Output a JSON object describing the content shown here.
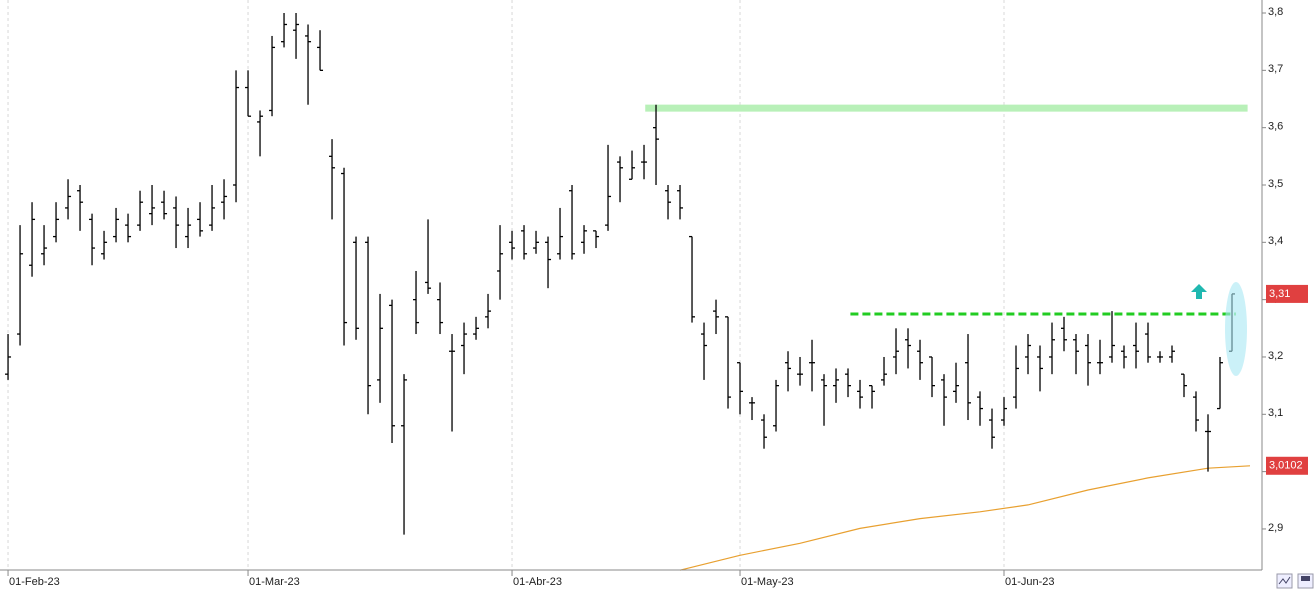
{
  "chart_data": {
    "type": "ohlc",
    "color": "#000000",
    "grid": true,
    "xlim": [
      -0.67,
      104.5
    ],
    "ylim": [
      2.8284,
      3.8227
    ],
    "yticks": [
      {
        "value": 2.9,
        "label": "2,9"
      },
      {
        "value": 3.0,
        "label": "3"
      },
      {
        "value": 3.1,
        "label": "3,1"
      },
      {
        "value": 3.2,
        "label": "3,2"
      },
      {
        "value": 3.3,
        "label": "3,3"
      },
      {
        "value": 3.4,
        "label": "3,4"
      },
      {
        "value": 3.5,
        "label": "3,5"
      },
      {
        "value": 3.6,
        "label": "3,6"
      },
      {
        "value": 3.7,
        "label": "3,7"
      },
      {
        "value": 3.8,
        "label": "3,8"
      }
    ],
    "xticks": [
      {
        "value": 0,
        "label": "01-Feb-23"
      },
      {
        "value": 20,
        "label": "01-Mar-23"
      },
      {
        "value": 42,
        "label": "01-Abr-23"
      },
      {
        "value": 61,
        "label": "01-May-23"
      },
      {
        "value": 83,
        "label": "01-Jun-23"
      }
    ],
    "ohlc": [
      [
        3.17,
        3.24,
        3.16,
        3.2
      ],
      [
        3.24,
        3.43,
        3.22,
        3.38
      ],
      [
        3.36,
        3.47,
        3.34,
        3.44
      ],
      [
        3.38,
        3.43,
        3.36,
        3.39
      ],
      [
        3.41,
        3.47,
        3.4,
        3.44
      ],
      [
        3.46,
        3.51,
        3.44,
        3.48
      ],
      [
        3.49,
        3.5,
        3.42,
        3.47
      ],
      [
        3.44,
        3.45,
        3.36,
        3.39
      ],
      [
        3.38,
        3.42,
        3.37,
        3.4
      ],
      [
        3.41,
        3.46,
        3.4,
        3.44
      ],
      [
        3.43,
        3.45,
        3.4,
        3.41
      ],
      [
        3.43,
        3.49,
        3.42,
        3.47
      ],
      [
        3.45,
        3.5,
        3.43,
        3.46
      ],
      [
        3.47,
        3.49,
        3.44,
        3.45
      ],
      [
        3.46,
        3.48,
        3.39,
        3.43
      ],
      [
        3.41,
        3.46,
        3.39,
        3.43
      ],
      [
        3.44,
        3.47,
        3.41,
        3.42
      ],
      [
        3.43,
        3.5,
        3.42,
        3.46
      ],
      [
        3.47,
        3.51,
        3.44,
        3.48
      ],
      [
        3.5,
        3.7,
        3.47,
        3.67
      ],
      [
        3.67,
        3.7,
        3.62,
        3.62
      ],
      [
        3.61,
        3.63,
        3.55,
        3.62
      ],
      [
        3.63,
        3.76,
        3.62,
        3.74
      ],
      [
        3.75,
        3.8,
        3.74,
        3.78
      ],
      [
        3.77,
        3.8,
        3.72,
        3.78
      ],
      [
        3.76,
        3.78,
        3.64,
        3.75
      ],
      [
        3.74,
        3.77,
        3.7,
        3.7
      ],
      [
        3.55,
        3.58,
        3.44,
        3.53
      ],
      [
        3.52,
        3.53,
        3.22,
        3.26
      ],
      [
        3.4,
        3.41,
        3.23,
        3.25
      ],
      [
        3.4,
        3.41,
        3.1,
        3.15
      ],
      [
        3.16,
        3.31,
        3.12,
        3.25
      ],
      [
        3.29,
        3.3,
        3.05,
        3.08
      ],
      [
        3.08,
        3.17,
        2.89,
        3.16
      ],
      [
        3.3,
        3.35,
        3.24,
        3.26
      ],
      [
        3.33,
        3.44,
        3.31,
        3.32
      ],
      [
        3.3,
        3.33,
        3.24,
        3.26
      ],
      [
        3.21,
        3.24,
        3.07,
        3.21
      ],
      [
        3.22,
        3.26,
        3.17,
        3.24
      ],
      [
        3.24,
        3.27,
        3.23,
        3.25
      ],
      [
        3.27,
        3.31,
        3.25,
        3.28
      ],
      [
        3.35,
        3.43,
        3.3,
        3.38
      ],
      [
        3.4,
        3.42,
        3.37,
        3.39
      ],
      [
        3.42,
        3.43,
        3.37,
        3.38
      ],
      [
        3.39,
        3.42,
        3.38,
        3.4
      ],
      [
        3.4,
        3.41,
        3.32,
        3.37
      ],
      [
        3.38,
        3.46,
        3.37,
        3.41
      ],
      [
        3.49,
        3.5,
        3.37,
        3.38
      ],
      [
        3.4,
        3.43,
        3.38,
        3.42
      ],
      [
        3.42,
        3.42,
        3.39,
        3.41
      ],
      [
        3.43,
        3.57,
        3.42,
        3.48
      ],
      [
        3.54,
        3.55,
        3.47,
        3.53
      ],
      [
        3.51,
        3.56,
        3.51,
        3.53
      ],
      [
        3.54,
        3.57,
        3.51,
        3.54
      ],
      [
        3.6,
        3.64,
        3.5,
        3.58
      ],
      [
        3.49,
        3.5,
        3.44,
        3.47
      ],
      [
        3.49,
        3.5,
        3.44,
        3.46
      ],
      [
        3.41,
        3.41,
        3.26,
        3.27
      ],
      [
        3.24,
        3.26,
        3.16,
        3.22
      ],
      [
        3.28,
        3.3,
        3.24,
        3.27
      ],
      [
        3.27,
        3.27,
        3.11,
        3.13
      ],
      [
        3.19,
        3.19,
        3.1,
        3.14
      ],
      [
        3.12,
        3.13,
        3.09,
        3.12
      ],
      [
        3.09,
        3.1,
        3.04,
        3.06
      ],
      [
        3.08,
        3.16,
        3.07,
        3.15
      ],
      [
        3.19,
        3.21,
        3.14,
        3.18
      ],
      [
        3.17,
        3.2,
        3.15,
        3.17
      ],
      [
        3.19,
        3.23,
        3.14,
        3.19
      ],
      [
        3.16,
        3.17,
        3.08,
        3.15
      ],
      [
        3.15,
        3.18,
        3.12,
        3.16
      ],
      [
        3.17,
        3.18,
        3.13,
        3.15
      ],
      [
        3.14,
        3.16,
        3.11,
        3.13
      ],
      [
        3.15,
        3.15,
        3.11,
        3.14
      ],
      [
        3.16,
        3.2,
        3.15,
        3.17
      ],
      [
        3.2,
        3.25,
        3.17,
        3.21
      ],
      [
        3.23,
        3.25,
        3.18,
        3.22
      ],
      [
        3.21,
        3.23,
        3.16,
        3.19
      ],
      [
        3.2,
        3.2,
        3.13,
        3.15
      ],
      [
        3.16,
        3.17,
        3.08,
        3.13
      ],
      [
        3.14,
        3.19,
        3.12,
        3.15
      ],
      [
        3.19,
        3.24,
        3.09,
        3.12
      ],
      [
        3.13,
        3.14,
        3.08,
        3.11
      ],
      [
        3.09,
        3.11,
        3.04,
        3.06
      ],
      [
        3.09,
        3.13,
        3.08,
        3.11
      ],
      [
        3.13,
        3.22,
        3.11,
        3.18
      ],
      [
        3.2,
        3.24,
        3.17,
        3.22
      ],
      [
        3.2,
        3.22,
        3.14,
        3.18
      ],
      [
        3.2,
        3.26,
        3.17,
        3.23
      ],
      [
        3.25,
        3.27,
        3.21,
        3.23
      ],
      [
        3.23,
        3.24,
        3.17,
        3.21
      ],
      [
        3.22,
        3.24,
        3.15,
        3.19
      ],
      [
        3.19,
        3.23,
        3.17,
        3.19
      ],
      [
        3.2,
        3.28,
        3.19,
        3.22
      ],
      [
        3.21,
        3.22,
        3.18,
        3.2
      ],
      [
        3.22,
        3.26,
        3.18,
        3.21
      ],
      [
        3.24,
        3.26,
        3.19,
        3.2
      ],
      [
        3.2,
        3.21,
        3.19,
        3.2
      ],
      [
        3.2,
        3.22,
        3.19,
        3.21
      ],
      [
        3.17,
        3.17,
        3.13,
        3.15
      ],
      [
        3.13,
        3.14,
        3.07,
        3.09
      ],
      [
        3.07,
        3.1,
        3.0,
        3.07
      ],
      [
        3.11,
        3.2,
        3.11,
        3.19
      ],
      [
        3.21,
        3.31,
        3.21,
        3.31
      ]
    ],
    "moving_average": {
      "color": "#e8a030",
      "x": [
        56,
        61,
        66,
        71,
        76,
        81,
        85,
        90,
        95,
        100,
        103.5
      ],
      "values": [
        2.828,
        2.854,
        2.875,
        2.901,
        2.918,
        2.93,
        2.942,
        2.968,
        2.989,
        3.006,
        3.0102
      ]
    },
    "levels": [
      {
        "value": 3.634,
        "from": 53.1,
        "to": 103.3,
        "color": "#b8f0b8",
        "style": "solid"
      },
      {
        "value": 3.275,
        "from": 70.2,
        "to": 102.3,
        "color": "#22cc22",
        "style": "dashed"
      }
    ],
    "price_labels": [
      {
        "value": 3.31,
        "label": "3,31",
        "color": "#e04040"
      },
      {
        "value": 3.0102,
        "label": "3,0102",
        "color": "#e04040"
      }
    ]
  }
}
